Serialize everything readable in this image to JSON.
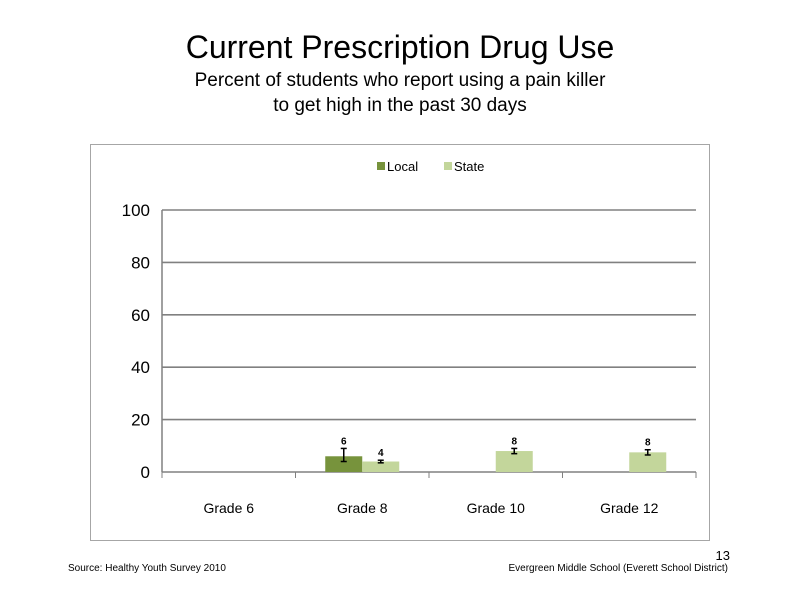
{
  "slide": {
    "title": "Current Prescription Drug Use",
    "subtitle_line1": "Percent of students who report using a pain killer",
    "subtitle_line2": "to get high in the past 30 days",
    "page_number": "13",
    "source": "Source: Healthy Youth Survey 2010",
    "school": "Evergreen Middle  School (Everett School District)"
  },
  "chart_data": {
    "type": "bar",
    "title": "",
    "xlabel": "",
    "ylabel": "",
    "categories": [
      "Grade 6",
      "Grade 8",
      "Grade 10",
      "Grade 12"
    ],
    "series": [
      {
        "name": "Local",
        "color": "#77933c",
        "values": [
          null,
          6,
          null,
          null
        ],
        "labels": [
          "",
          "6",
          "",
          ""
        ],
        "error_low": [
          null,
          4,
          null,
          null
        ],
        "error_high": [
          null,
          9,
          null,
          null
        ]
      },
      {
        "name": "State",
        "color": "#c3d69b",
        "values": [
          null,
          4,
          8,
          7.5
        ],
        "labels": [
          "",
          "4",
          "8",
          "8"
        ],
        "error_low": [
          null,
          3.5,
          7,
          6.5
        ],
        "error_high": [
          null,
          4.5,
          9,
          8.5
        ]
      }
    ],
    "ylim": [
      0,
      100
    ],
    "yticks": [
      0,
      20,
      40,
      60,
      80,
      100
    ],
    "grid": true,
    "legend": "top-center"
  }
}
